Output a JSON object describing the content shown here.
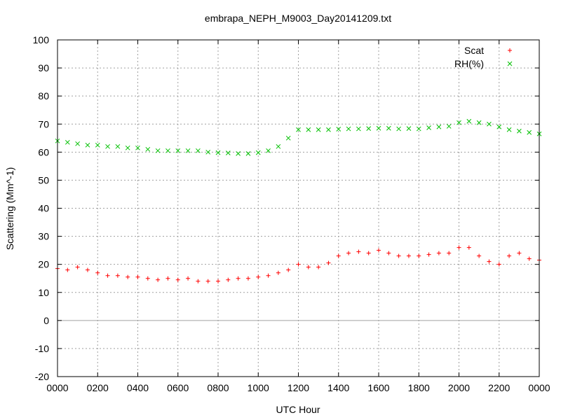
{
  "chart_data": {
    "type": "scatter",
    "title": "embrapa_NEPH_M9003_Day20141209.txt",
    "xlabel": "UTC Hour",
    "ylabel": "Scattering (Mm^-1)",
    "xlim": [
      0,
      24
    ],
    "ylim": [
      -20,
      100
    ],
    "yticks": [
      -20,
      -10,
      0,
      10,
      20,
      30,
      40,
      50,
      60,
      70,
      80,
      90,
      100
    ],
    "xticks": [
      {
        "v": 0,
        "label": "0000"
      },
      {
        "v": 2,
        "label": "0200"
      },
      {
        "v": 4,
        "label": "0400"
      },
      {
        "v": 6,
        "label": "0600"
      },
      {
        "v": 8,
        "label": "0800"
      },
      {
        "v": 10,
        "label": "1000"
      },
      {
        "v": 12,
        "label": "1200"
      },
      {
        "v": 14,
        "label": "1400"
      },
      {
        "v": 16,
        "label": "1600"
      },
      {
        "v": 18,
        "label": "1800"
      },
      {
        "v": 20,
        "label": "2000"
      },
      {
        "v": 22,
        "label": "2200"
      },
      {
        "v": 24,
        "label": "0000"
      }
    ],
    "grid": true,
    "legend_position": "top-right",
    "series": [
      {
        "name": "Scat",
        "marker": "plus",
        "color": "#ff0000",
        "x": [
          0.0,
          0.5,
          1.0,
          1.5,
          2.0,
          2.5,
          3.0,
          3.5,
          4.0,
          4.5,
          5.0,
          5.5,
          6.0,
          6.5,
          7.0,
          7.5,
          8.0,
          8.5,
          9.0,
          9.5,
          10.0,
          10.5,
          11.0,
          11.5,
          12.0,
          12.5,
          13.0,
          13.5,
          14.0,
          14.5,
          15.0,
          15.5,
          16.0,
          16.5,
          17.0,
          17.5,
          18.0,
          18.5,
          19.0,
          19.5,
          20.0,
          20.5,
          21.0,
          21.5,
          22.0,
          22.5,
          23.0,
          23.5,
          24.0
        ],
        "y": [
          18.5,
          18,
          19,
          18,
          17,
          16,
          16,
          15.5,
          15.5,
          15,
          14.5,
          15,
          14.5,
          15,
          14,
          14,
          14,
          14.5,
          15,
          15,
          15.5,
          16,
          17,
          18,
          20,
          19,
          19,
          20.5,
          23,
          24,
          24.5,
          24,
          25,
          24,
          23,
          23,
          23,
          23.5,
          24,
          24,
          26,
          26,
          23,
          21,
          20,
          23,
          24,
          22,
          21.5
        ]
      },
      {
        "name": "RH(%)",
        "marker": "cross",
        "color": "#00c000",
        "x": [
          0.0,
          0.5,
          1.0,
          1.5,
          2.0,
          2.5,
          3.0,
          3.5,
          4.0,
          4.5,
          5.0,
          5.5,
          6.0,
          6.5,
          7.0,
          7.5,
          8.0,
          8.5,
          9.0,
          9.5,
          10.0,
          10.5,
          11.0,
          11.5,
          12.0,
          12.5,
          13.0,
          13.5,
          14.0,
          14.5,
          15.0,
          15.5,
          16.0,
          16.5,
          17.0,
          17.5,
          18.0,
          18.5,
          19.0,
          19.5,
          20.0,
          20.5,
          21.0,
          21.5,
          22.0,
          22.5,
          23.0,
          23.5,
          24.0
        ],
        "y": [
          64,
          63.5,
          63,
          62.5,
          62.5,
          62,
          62,
          61.5,
          61.5,
          61,
          60.5,
          60.5,
          60.5,
          60.5,
          60.5,
          60,
          59.8,
          59.7,
          59.5,
          59.5,
          59.8,
          60.5,
          62,
          65,
          68,
          68,
          68,
          68,
          68.2,
          68.3,
          68.3,
          68.4,
          68.5,
          68.5,
          68.3,
          68.4,
          68.3,
          68.7,
          69,
          69.2,
          70.5,
          71,
          70.5,
          70,
          69,
          68,
          67.5,
          67,
          66.5
        ]
      }
    ]
  }
}
